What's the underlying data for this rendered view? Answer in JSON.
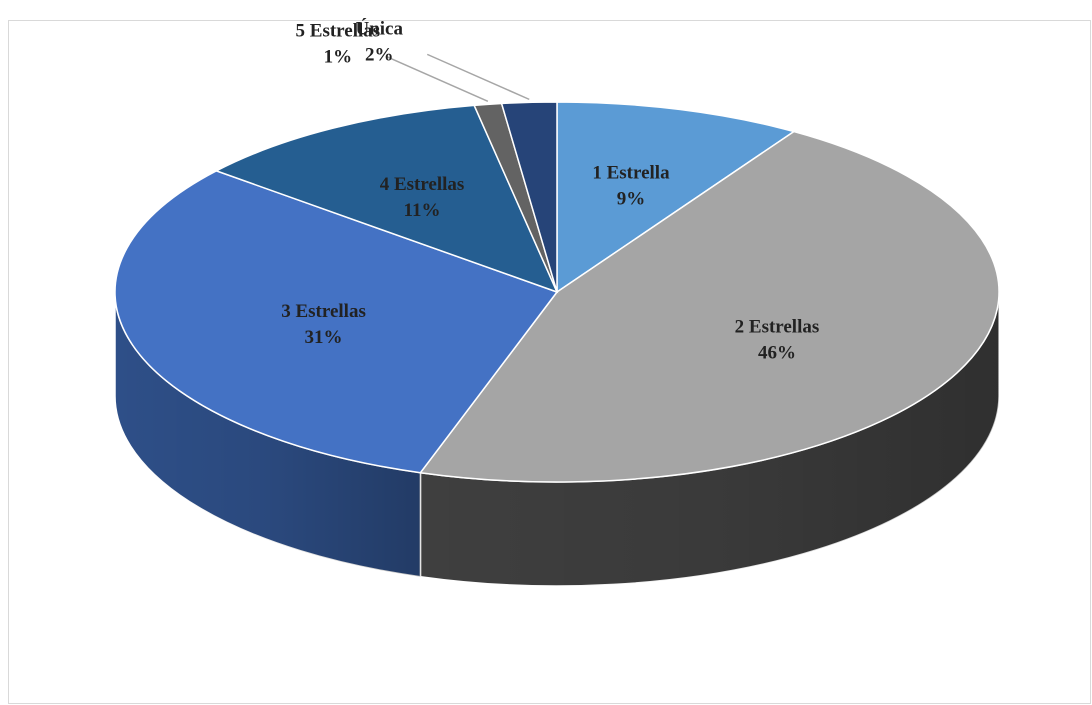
{
  "chart_data": {
    "type": "pie",
    "title": "",
    "slices": [
      {
        "label": "1 Estrella",
        "value": 9,
        "value_label": "9%",
        "color": "#5b9bd5",
        "side_color": "#3c6e9c"
      },
      {
        "label": "2 Estrellas",
        "value": 46,
        "value_label": "46%",
        "color": "#a5a5a5",
        "side_color": "#3f3f3f"
      },
      {
        "label": "3 Estrellas",
        "value": 31,
        "value_label": "31%",
        "color": "#4472c4",
        "side_color": "#2e4f88"
      },
      {
        "label": "4 Estrellas",
        "value": 11,
        "value_label": "11%",
        "color": "#255e91",
        "side_color": "#173d5e"
      },
      {
        "label": "5 Estrellas",
        "value": 1,
        "value_label": "1%",
        "color": "#636363",
        "side_color": "#3a3a3a"
      },
      {
        "label": "Única",
        "value": 2,
        "value_label": "2%",
        "color": "#264478",
        "side_color": "#162a4c"
      }
    ],
    "start_at": "top",
    "direction": "clockwise",
    "style": "3d",
    "legend": "none",
    "data_labels": "category and percentage"
  }
}
